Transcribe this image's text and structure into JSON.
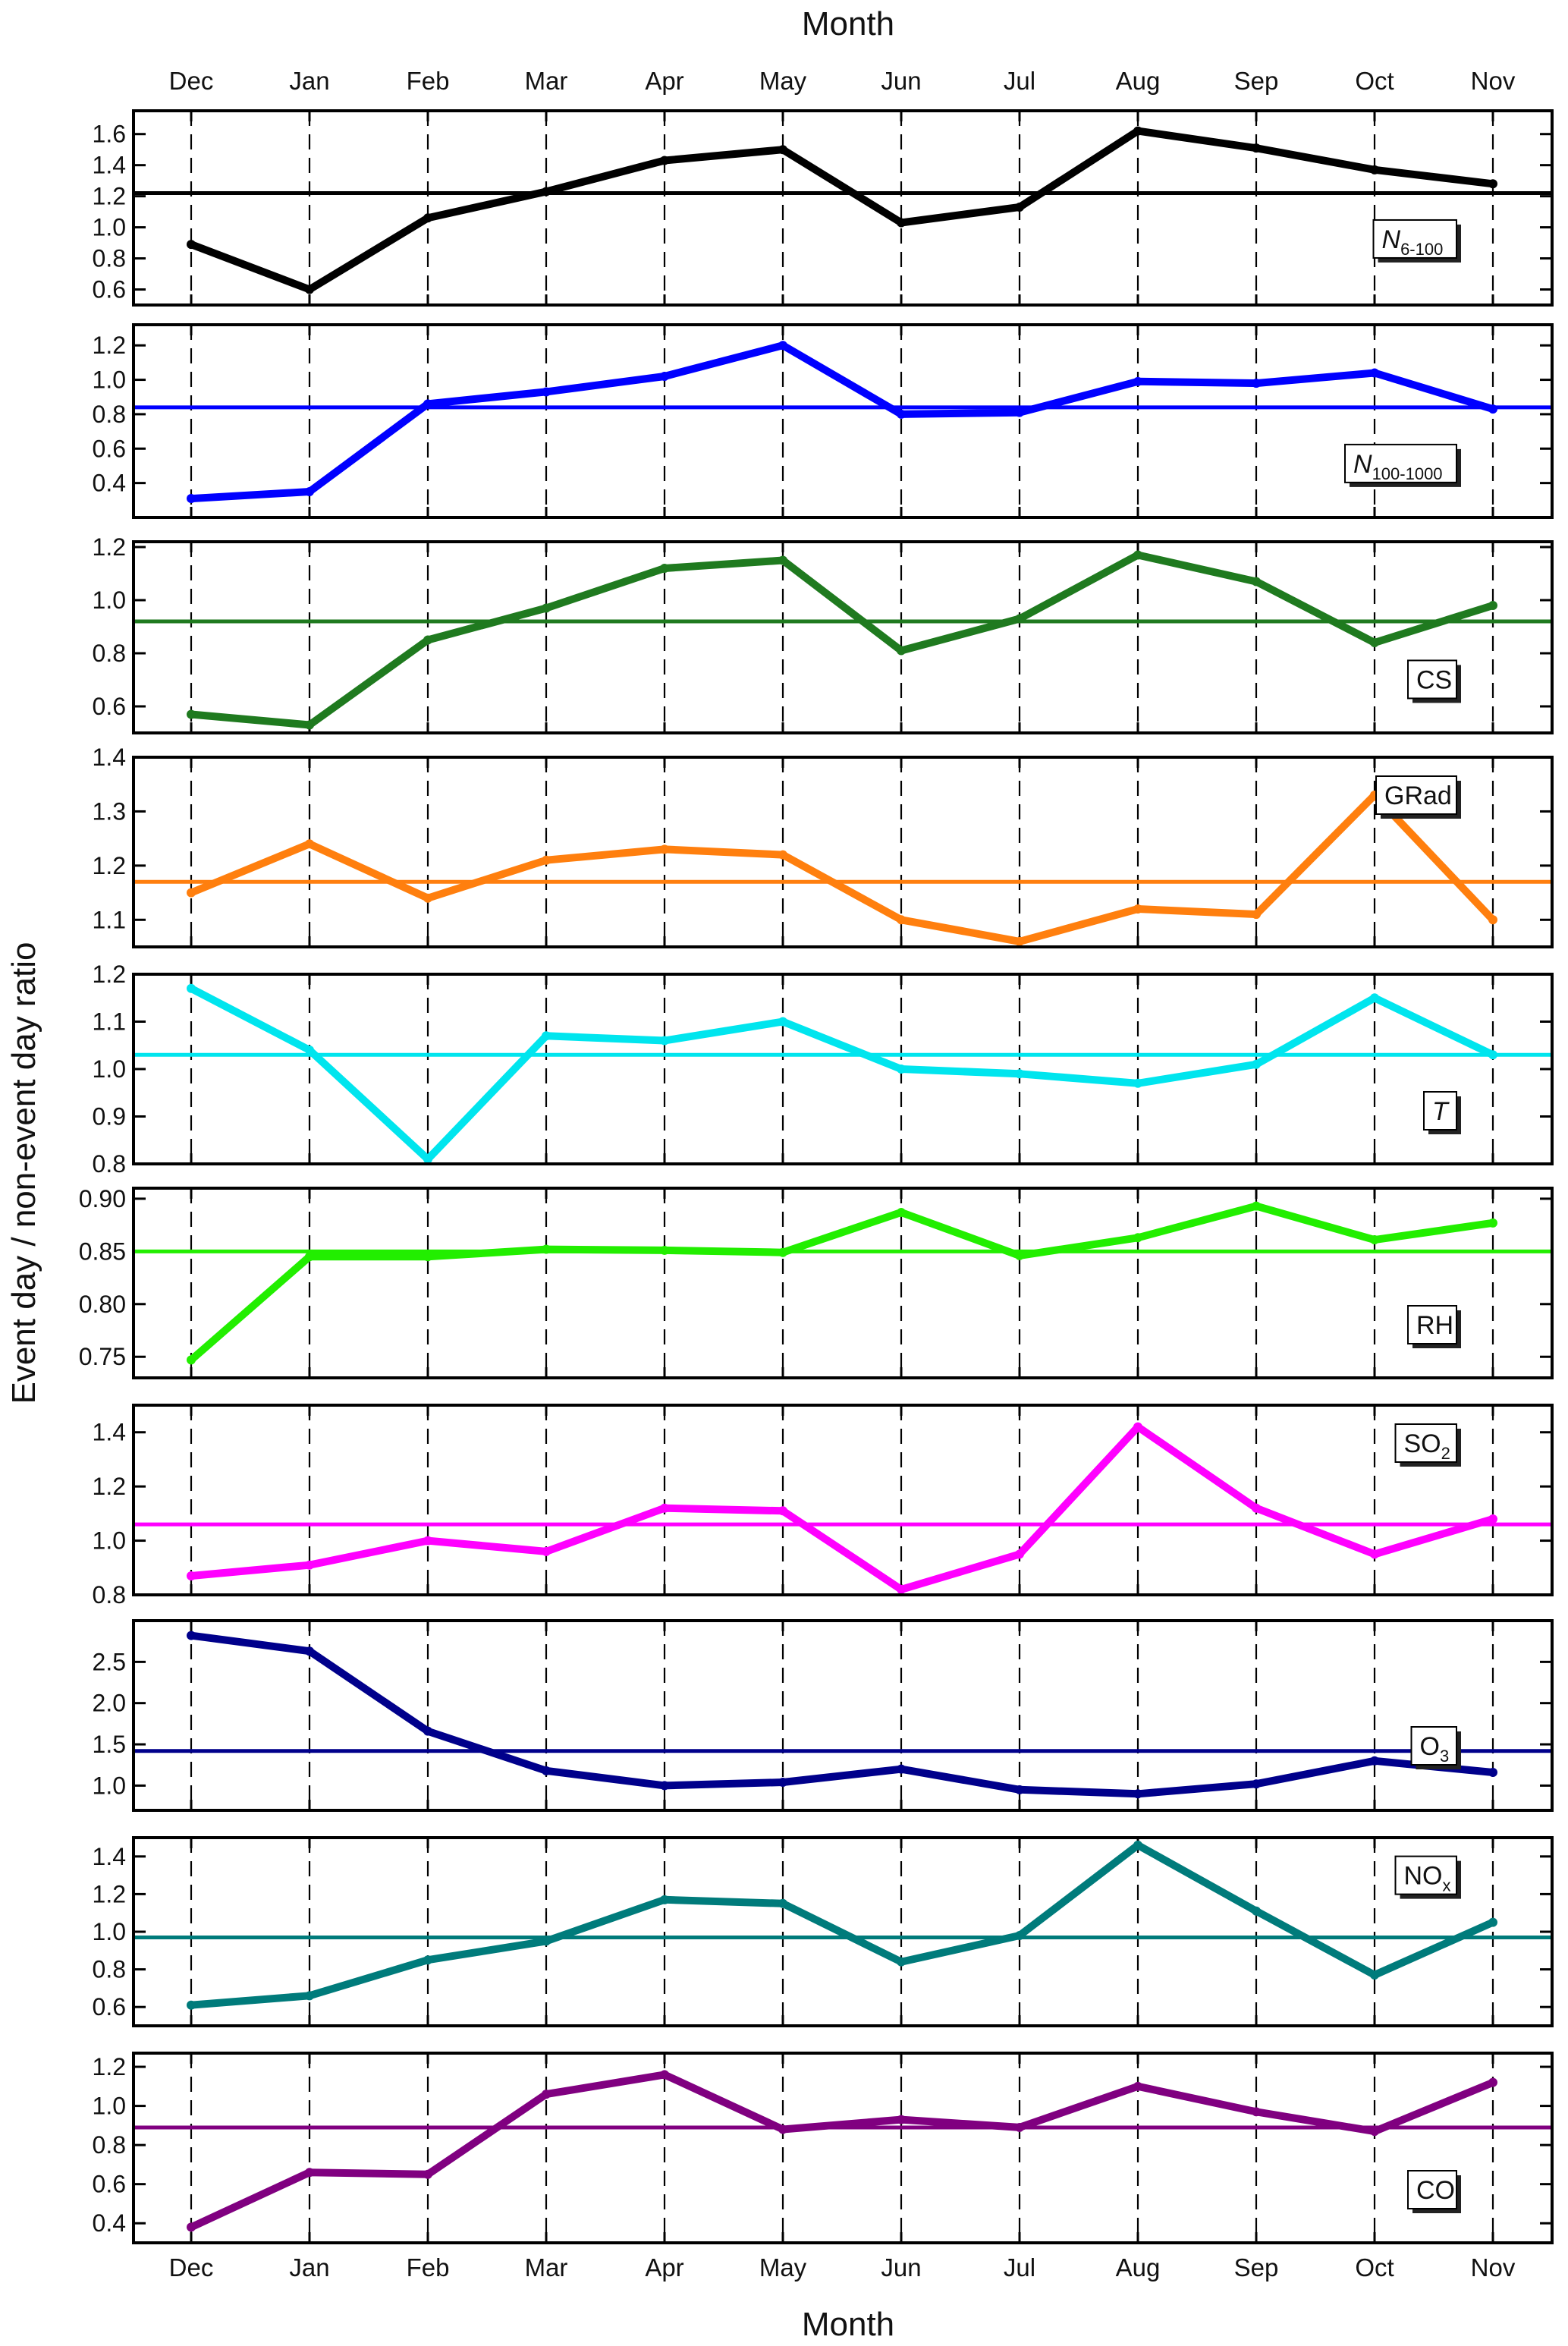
{
  "chart_data": {
    "type": "line",
    "title": "",
    "xlabel_top": "Month",
    "xlabel_bottom": "Month",
    "ylabel": "Event day / non-event day ratio",
    "categories": [
      "Dec",
      "Jan",
      "Feb",
      "Mar",
      "Apr",
      "May",
      "Jun",
      "Jul",
      "Aug",
      "Sep",
      "Oct",
      "Nov"
    ],
    "grid": "dashed vertical lines at each month",
    "legend_placement": "right, in each panel",
    "panels": [
      {
        "name": "N6-100",
        "label": "N",
        "label_sub": "6-100",
        "italic": true,
        "color": "#000000",
        "values": [
          0.89,
          0.6,
          1.06,
          1.23,
          1.43,
          1.5,
          1.03,
          1.13,
          1.62,
          1.51,
          1.37,
          1.28
        ],
        "reference": 1.22,
        "ylim": [
          0.5,
          1.75
        ],
        "yticks": [
          0.6,
          0.8,
          1.0,
          1.2,
          1.4,
          1.6
        ],
        "tick_labels": [
          "0.6",
          "0.8",
          "1.0",
          "1.2",
          "1.4",
          "1.6"
        ],
        "legend_pos": "mid"
      },
      {
        "name": "N100-1000",
        "label": "N",
        "label_sub": "100-1000",
        "italic": true,
        "color": "#0000ff",
        "values": [
          0.31,
          0.35,
          0.86,
          0.93,
          1.02,
          1.2,
          0.8,
          0.81,
          0.99,
          0.98,
          1.04,
          0.83
        ],
        "reference": 0.84,
        "ylim": [
          0.2,
          1.32
        ],
        "yticks": [
          0.4,
          0.6,
          0.8,
          1.0,
          1.2
        ],
        "tick_labels": [
          "0.4",
          "0.6",
          "0.8",
          "1.0",
          "1.2"
        ],
        "legend_pos": "low"
      },
      {
        "name": "CS",
        "label": "CS",
        "label_sub": "",
        "italic": false,
        "color": "#1f7a1f",
        "values": [
          0.57,
          0.53,
          0.85,
          0.97,
          1.12,
          1.15,
          0.81,
          0.93,
          1.17,
          1.07,
          0.84,
          0.98
        ],
        "reference": 0.92,
        "ylim": [
          0.5,
          1.22
        ],
        "yticks": [
          0.6,
          0.8,
          1.0,
          1.2
        ],
        "tick_labels": [
          "0.6",
          "0.8",
          "1.0",
          "1.2"
        ],
        "legend_pos": "low"
      },
      {
        "name": "GRad",
        "label": "GRad",
        "label_sub": "",
        "italic": false,
        "color": "#ff7f0e",
        "values": [
          1.15,
          1.24,
          1.14,
          1.21,
          1.23,
          1.22,
          1.1,
          1.06,
          1.12,
          1.11,
          1.33,
          1.1
        ],
        "reference": 1.17,
        "ylim": [
          1.05,
          1.4
        ],
        "yticks": [
          1.1,
          1.2,
          1.3,
          1.4
        ],
        "tick_labels": [
          "1.1",
          "1.2",
          "1.3",
          "1.4"
        ],
        "legend_pos": "high"
      },
      {
        "name": "T",
        "label": "T",
        "label_sub": "",
        "italic": true,
        "color": "#00e5ee",
        "values": [
          1.17,
          1.04,
          0.81,
          1.07,
          1.06,
          1.1,
          1.0,
          0.99,
          0.97,
          1.01,
          1.15,
          1.03
        ],
        "reference": 1.03,
        "ylim": [
          0.8,
          1.2
        ],
        "yticks": [
          0.8,
          0.9,
          1.0,
          1.1,
          1.2
        ],
        "tick_labels": [
          "0.8",
          "0.9",
          "1.0",
          "1.1",
          "1.2"
        ],
        "legend_pos": "low"
      },
      {
        "name": "RH",
        "label": "RH",
        "label_sub": "",
        "italic": false,
        "color": "#22ee00",
        "values": [
          0.747,
          0.845,
          0.845,
          0.852,
          0.851,
          0.849,
          0.887,
          0.846,
          0.863,
          0.893,
          0.861,
          0.877
        ],
        "reference": 0.85,
        "ylim": [
          0.73,
          0.91
        ],
        "yticks": [
          0.75,
          0.8,
          0.85,
          0.9
        ],
        "tick_labels": [
          "0.75",
          "0.80",
          "0.85",
          "0.90"
        ],
        "legend_pos": "low"
      },
      {
        "name": "SO2",
        "label": "SO",
        "label_sub": "2",
        "italic": false,
        "color": "#ff00ff",
        "values": [
          0.87,
          0.91,
          1.0,
          0.96,
          1.12,
          1.11,
          0.82,
          0.95,
          1.42,
          1.12,
          0.95,
          1.08
        ],
        "reference": 1.06,
        "ylim": [
          0.8,
          1.5
        ],
        "yticks": [
          0.8,
          1.0,
          1.2,
          1.4
        ],
        "tick_labels": [
          "0.8",
          "1.0",
          "1.2",
          "1.4"
        ],
        "legend_pos": "high"
      },
      {
        "name": "O3",
        "label": "O",
        "label_sub": "3",
        "italic": false,
        "color": "#00008b",
        "values": [
          2.82,
          2.63,
          1.66,
          1.18,
          1.0,
          1.04,
          1.2,
          0.95,
          0.9,
          1.02,
          1.3,
          1.16
        ],
        "reference": 1.42,
        "ylim": [
          0.7,
          3.0
        ],
        "yticks": [
          1.0,
          1.5,
          2.0,
          2.5
        ],
        "tick_labels": [
          "1.0",
          "1.5",
          "2.0",
          "2.5"
        ],
        "legend_pos": "mid"
      },
      {
        "name": "NOx",
        "label": "NO",
        "label_sub": "x",
        "italic": false,
        "color": "#007b7b",
        "values": [
          0.61,
          0.66,
          0.85,
          0.95,
          1.17,
          1.15,
          0.84,
          0.98,
          1.46,
          1.11,
          0.77,
          1.05
        ],
        "reference": 0.97,
        "ylim": [
          0.5,
          1.5
        ],
        "yticks": [
          0.6,
          0.8,
          1.0,
          1.2,
          1.4
        ],
        "tick_labels": [
          "0.6",
          "0.8",
          "1.0",
          "1.2",
          "1.4"
        ],
        "legend_pos": "high"
      },
      {
        "name": "CO",
        "label": "CO",
        "label_sub": "",
        "italic": false,
        "color": "#800080",
        "values": [
          0.38,
          0.66,
          0.65,
          1.06,
          1.16,
          0.88,
          0.93,
          0.89,
          1.1,
          0.97,
          0.87,
          1.12
        ],
        "reference": 0.89,
        "ylim": [
          0.3,
          1.27
        ],
        "yticks": [
          0.4,
          0.6,
          0.8,
          1.0,
          1.2
        ],
        "tick_labels": [
          "0.4",
          "0.6",
          "0.8",
          "1.0",
          "1.2"
        ],
        "legend_pos": "low"
      }
    ]
  }
}
